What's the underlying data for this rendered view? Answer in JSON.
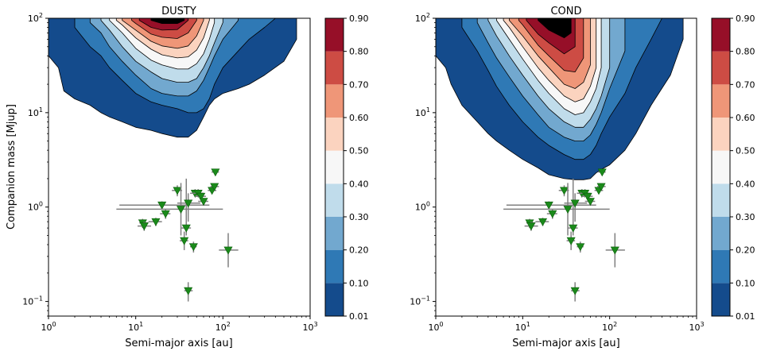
{
  "chart_data": [
    {
      "type": "contour",
      "title": "DUSTY",
      "xlabel": "Semi-major axis [au]",
      "ylabel": "Companion mass [Mjup]",
      "xscale": "log",
      "yscale": "log",
      "xlim": [
        1,
        1000
      ],
      "ylim": [
        0.07,
        100
      ],
      "xticks": [
        {
          "value": 1,
          "base": "10",
          "exp": "0"
        },
        {
          "value": 10,
          "base": "10",
          "exp": "1"
        },
        {
          "value": 100,
          "base": "10",
          "exp": "2"
        },
        {
          "value": 1000,
          "base": "10",
          "exp": "3"
        }
      ],
      "yticks": [
        {
          "value": 0.1,
          "base": "10",
          "exp": "−1"
        },
        {
          "value": 1,
          "base": "10",
          "exp": "0"
        },
        {
          "value": 10,
          "base": "10",
          "exp": "1"
        },
        {
          "value": 100,
          "base": "10",
          "exp": "2"
        }
      ],
      "contour_levels": [
        0.01,
        0.1,
        0.2,
        0.3,
        0.4,
        0.5,
        0.6,
        0.7,
        0.8,
        0.9
      ],
      "contour_floor_mass": [
        {
          "level": 0.01,
          "a": [
            1,
            1.3,
            1.5,
            2,
            3,
            4,
            5,
            7,
            10,
            15,
            20,
            30,
            40,
            50,
            60,
            70,
            80,
            100,
            150,
            200,
            300,
            500,
            700
          ],
          "m": [
            40,
            30,
            17,
            14,
            12,
            10,
            9,
            8,
            7,
            6.5,
            6,
            5.5,
            5.5,
            6.5,
            9,
            12,
            14,
            16,
            18,
            20,
            25,
            35,
            60
          ]
        },
        {
          "level": 0.1,
          "a": [
            2,
            3,
            4,
            5,
            7,
            10,
            15,
            20,
            30,
            40,
            50,
            60,
            70,
            80,
            100,
            150,
            200,
            300,
            400
          ],
          "m": [
            80,
            50,
            40,
            30,
            22,
            16,
            13,
            12,
            11,
            10,
            10,
            11,
            14,
            20,
            30,
            45,
            60,
            80,
            100
          ]
        },
        {
          "level": 0.2,
          "a": [
            3,
            4,
            5,
            7,
            10,
            15,
            20,
            30,
            40,
            50,
            60,
            70,
            80,
            100,
            150
          ],
          "m": [
            90,
            70,
            50,
            35,
            25,
            18,
            16,
            15,
            15,
            17,
            22,
            30,
            40,
            60,
            95
          ]
        },
        {
          "level": 0.3,
          "a": [
            4,
            5,
            7,
            10,
            15,
            20,
            30,
            40,
            50,
            60,
            70,
            80,
            100
          ],
          "m": [
            95,
            75,
            50,
            35,
            27,
            23,
            21,
            21,
            23,
            30,
            40,
            55,
            90
          ]
        },
        {
          "level": 0.4,
          "a": [
            5,
            7,
            10,
            15,
            20,
            30,
            40,
            50,
            60,
            70,
            80
          ],
          "m": [
            95,
            70,
            48,
            36,
            32,
            29,
            29,
            33,
            42,
            60,
            90
          ]
        },
        {
          "level": 0.5,
          "a": [
            6,
            7,
            10,
            15,
            20,
            30,
            40,
            50,
            60,
            70
          ],
          "m": [
            95,
            85,
            62,
            47,
            41,
            38,
            39,
            46,
            62,
            95
          ]
        },
        {
          "level": 0.6,
          "a": [
            7,
            10,
            15,
            20,
            30,
            40,
            50,
            60
          ],
          "m": [
            95,
            75,
            57,
            51,
            48,
            51,
            65,
            95
          ]
        },
        {
          "level": 0.7,
          "a": [
            9,
            10,
            15,
            20,
            30,
            40,
            50
          ],
          "m": [
            95,
            88,
            68,
            63,
            61,
            70,
            95
          ]
        },
        {
          "level": 0.8,
          "a": [
            11,
            15,
            20,
            30,
            40
          ],
          "m": [
            95,
            80,
            75,
            76,
            95
          ]
        },
        {
          "level": 0.9,
          "a": [
            15,
            20,
            30,
            36
          ],
          "m": [
            95,
            88,
            88,
            95
          ]
        }
      ],
      "points": [
        {
          "a": 12,
          "m": 0.68,
          "a_lo": 11,
          "a_hi": 14,
          "m_lo": 0.6,
          "m_hi": 0.75
        },
        {
          "a": 12.5,
          "m": 0.63,
          "a_lo": 10.5,
          "a_hi": 15,
          "m_lo": 0.56,
          "m_hi": 0.7
        },
        {
          "a": 17,
          "m": 0.7,
          "a_lo": 14,
          "a_hi": 20,
          "m_lo": 0.63,
          "m_hi": 0.77
        },
        {
          "a": 20,
          "m": 1.05,
          "a_lo": 6.5,
          "a_hi": 70,
          "m_lo": 0.95,
          "m_hi": 1.15
        },
        {
          "a": 22,
          "m": 0.85,
          "a_lo": 19,
          "a_hi": 25,
          "m_lo": 0.75,
          "m_hi": 0.95
        },
        {
          "a": 30,
          "m": 1.5,
          "a_lo": 26,
          "a_hi": 34,
          "m_lo": 1.3,
          "m_hi": 1.7
        },
        {
          "a": 33,
          "m": 0.95,
          "a_lo": 6,
          "a_hi": 100,
          "m_lo": 0.5,
          "m_hi": 1.8
        },
        {
          "a": 36,
          "m": 0.44,
          "a_lo": 32,
          "a_hi": 40,
          "m_lo": 0.35,
          "m_hi": 0.55
        },
        {
          "a": 38,
          "m": 0.6,
          "a_lo": 33,
          "a_hi": 43,
          "m_lo": 0.5,
          "m_hi": 2.0
        },
        {
          "a": 40,
          "m": 1.1,
          "a_lo": 30,
          "a_hi": 55,
          "m_lo": 0.7,
          "m_hi": 1.4
        },
        {
          "a": 46,
          "m": 0.38,
          "a_lo": 42,
          "a_hi": 50,
          "m_lo": 0.33,
          "m_hi": 0.43
        },
        {
          "a": 48,
          "m": 1.4,
          "a_lo": 42,
          "a_hi": 55,
          "m_lo": 1.3,
          "m_hi": 1.55
        },
        {
          "a": 52,
          "m": 1.4,
          "a_lo": 45,
          "a_hi": 60,
          "m_lo": 1.3,
          "m_hi": 1.55
        },
        {
          "a": 56,
          "m": 1.3,
          "a_lo": 48,
          "a_hi": 64,
          "m_lo": 1.2,
          "m_hi": 1.4
        },
        {
          "a": 60,
          "m": 1.15,
          "a_lo": 52,
          "a_hi": 68,
          "m_lo": 1.05,
          "m_hi": 1.25
        },
        {
          "a": 75,
          "m": 1.5,
          "a_lo": 67,
          "a_hi": 84,
          "m_lo": 1.4,
          "m_hi": 1.6
        },
        {
          "a": 80,
          "m": 1.65,
          "a_lo": 72,
          "a_hi": 90,
          "m_lo": 1.55,
          "m_hi": 1.75
        },
        {
          "a": 82,
          "m": 2.35,
          "a_lo": 74,
          "a_hi": 90,
          "m_lo": 2.2,
          "m_hi": 2.5
        },
        {
          "a": 40,
          "m": 0.13,
          "a_lo": 36,
          "a_hi": 45,
          "m_lo": 0.1,
          "m_hi": 0.16
        },
        {
          "a": 115,
          "m": 0.35,
          "a_lo": 90,
          "a_hi": 150,
          "m_lo": 0.23,
          "m_hi": 0.53
        }
      ]
    },
    {
      "type": "contour",
      "title": "COND",
      "xlabel": "Semi-major axis [au]",
      "ylabel": "",
      "xscale": "log",
      "yscale": "log",
      "xlim": [
        1,
        1000
      ],
      "ylim": [
        0.07,
        100
      ],
      "xticks": [
        {
          "value": 1,
          "base": "10",
          "exp": "0"
        },
        {
          "value": 10,
          "base": "10",
          "exp": "1"
        },
        {
          "value": 100,
          "base": "10",
          "exp": "2"
        },
        {
          "value": 1000,
          "base": "10",
          "exp": "3"
        }
      ],
      "yticks": [
        {
          "value": 0.1,
          "base": "10",
          "exp": "−1"
        },
        {
          "value": 1,
          "base": "10",
          "exp": "0"
        },
        {
          "value": 10,
          "base": "10",
          "exp": "1"
        },
        {
          "value": 100,
          "base": "10",
          "exp": "2"
        }
      ],
      "contour_levels": [
        0.01,
        0.1,
        0.2,
        0.3,
        0.4,
        0.5,
        0.6,
        0.7,
        0.8,
        0.9
      ],
      "contour_floor_mass": [
        {
          "level": 0.01,
          "a": [
            1,
            1.3,
            1.5,
            2,
            3,
            4,
            5,
            7,
            10,
            15,
            20,
            30,
            40,
            50,
            60,
            70,
            80,
            100,
            150,
            200,
            300,
            500,
            700
          ],
          "m": [
            40,
            30,
            20,
            12,
            8,
            6,
            5,
            4,
            3.2,
            2.6,
            2.2,
            2.0,
            1.95,
            1.95,
            2.0,
            2.3,
            2.5,
            2.8,
            4,
            6,
            12,
            25,
            60
          ]
        },
        {
          "level": 0.1,
          "a": [
            2,
            3,
            4,
            5,
            7,
            10,
            15,
            20,
            30,
            40,
            50,
            60,
            70,
            80,
            100,
            150,
            200,
            300,
            400
          ],
          "m": [
            80,
            45,
            28,
            19,
            12,
            8,
            5.5,
            4.5,
            3.6,
            3.2,
            3.2,
            3.6,
            4.5,
            6,
            9,
            16,
            30,
            60,
            100
          ]
        },
        {
          "level": 0.2,
          "a": [
            3,
            4,
            5,
            7,
            10,
            15,
            20,
            30,
            40,
            50,
            60,
            70,
            80,
            100,
            150
          ],
          "m": [
            90,
            55,
            38,
            24,
            15,
            9.5,
            7,
            5.5,
            5,
            5,
            5.8,
            7.5,
            10,
            18,
            45
          ]
        },
        {
          "level": 0.3,
          "a": [
            4,
            5,
            7,
            10,
            15,
            20,
            30,
            40,
            50,
            60,
            70,
            80,
            100
          ],
          "m": [
            95,
            65,
            40,
            25,
            15,
            11,
            8,
            7,
            7,
            8.5,
            11,
            15,
            30
          ]
        },
        {
          "level": 0.4,
          "a": [
            5,
            7,
            10,
            15,
            20,
            30,
            40,
            50,
            60,
            70,
            80
          ],
          "m": [
            95,
            60,
            37,
            22,
            16,
            11,
            9.5,
            10,
            13,
            18,
            30
          ]
        },
        {
          "level": 0.5,
          "a": [
            6,
            7,
            10,
            15,
            20,
            30,
            40,
            50,
            60,
            70
          ],
          "m": [
            95,
            80,
            50,
            30,
            22,
            15,
            13,
            14,
            19,
            30
          ]
        },
        {
          "level": 0.6,
          "a": [
            7,
            10,
            15,
            20,
            30,
            40,
            50,
            60
          ],
          "m": [
            95,
            65,
            40,
            30,
            20,
            18,
            21,
            32
          ]
        },
        {
          "level": 0.7,
          "a": [
            9,
            10,
            15,
            20,
            30,
            40,
            50
          ],
          "m": [
            95,
            85,
            52,
            40,
            28,
            27,
            38
          ]
        },
        {
          "level": 0.8,
          "a": [
            11,
            15,
            20,
            30,
            40
          ],
          "m": [
            95,
            68,
            55,
            42,
            50
          ]
        },
        {
          "level": 0.9,
          "a": [
            15,
            20,
            30,
            36
          ],
          "m": [
            95,
            75,
            62,
            70
          ]
        }
      ],
      "points": [
        {
          "a": 12,
          "m": 0.68,
          "a_lo": 11,
          "a_hi": 14,
          "m_lo": 0.6,
          "m_hi": 0.75
        },
        {
          "a": 12.5,
          "m": 0.63,
          "a_lo": 10.5,
          "a_hi": 15,
          "m_lo": 0.56,
          "m_hi": 0.7
        },
        {
          "a": 17,
          "m": 0.7,
          "a_lo": 14,
          "a_hi": 20,
          "m_lo": 0.63,
          "m_hi": 0.77
        },
        {
          "a": 20,
          "m": 1.05,
          "a_lo": 6.5,
          "a_hi": 70,
          "m_lo": 0.95,
          "m_hi": 1.15
        },
        {
          "a": 22,
          "m": 0.85,
          "a_lo": 19,
          "a_hi": 25,
          "m_lo": 0.75,
          "m_hi": 0.95
        },
        {
          "a": 30,
          "m": 1.5,
          "a_lo": 26,
          "a_hi": 34,
          "m_lo": 1.3,
          "m_hi": 1.7
        },
        {
          "a": 33,
          "m": 0.95,
          "a_lo": 6,
          "a_hi": 100,
          "m_lo": 0.5,
          "m_hi": 1.8
        },
        {
          "a": 36,
          "m": 0.44,
          "a_lo": 32,
          "a_hi": 40,
          "m_lo": 0.35,
          "m_hi": 0.55
        },
        {
          "a": 38,
          "m": 0.6,
          "a_lo": 33,
          "a_hi": 43,
          "m_lo": 0.5,
          "m_hi": 2.0
        },
        {
          "a": 40,
          "m": 1.1,
          "a_lo": 30,
          "a_hi": 55,
          "m_lo": 0.7,
          "m_hi": 1.4
        },
        {
          "a": 46,
          "m": 0.38,
          "a_lo": 42,
          "a_hi": 50,
          "m_lo": 0.33,
          "m_hi": 0.43
        },
        {
          "a": 48,
          "m": 1.4,
          "a_lo": 42,
          "a_hi": 55,
          "m_lo": 1.3,
          "m_hi": 1.55
        },
        {
          "a": 52,
          "m": 1.4,
          "a_lo": 45,
          "a_hi": 60,
          "m_lo": 1.3,
          "m_hi": 1.55
        },
        {
          "a": 56,
          "m": 1.3,
          "a_lo": 48,
          "a_hi": 64,
          "m_lo": 1.2,
          "m_hi": 1.4
        },
        {
          "a": 60,
          "m": 1.15,
          "a_lo": 52,
          "a_hi": 68,
          "m_lo": 1.05,
          "m_hi": 1.25
        },
        {
          "a": 75,
          "m": 1.5,
          "a_lo": 67,
          "a_hi": 84,
          "m_lo": 1.4,
          "m_hi": 1.6
        },
        {
          "a": 80,
          "m": 1.65,
          "a_lo": 72,
          "a_hi": 90,
          "m_lo": 1.55,
          "m_hi": 1.75
        },
        {
          "a": 82,
          "m": 2.35,
          "a_lo": 74,
          "a_hi": 90,
          "m_lo": 2.2,
          "m_hi": 2.5
        },
        {
          "a": 40,
          "m": 0.13,
          "a_lo": 36,
          "a_hi": 45,
          "m_lo": 0.1,
          "m_hi": 0.16
        },
        {
          "a": 115,
          "m": 0.35,
          "a_lo": 90,
          "a_hi": 150,
          "m_lo": 0.23,
          "m_hi": 0.53
        }
      ]
    }
  ],
  "colorbars": [
    {
      "labels": [
        "0.01",
        "0.10",
        "0.20",
        "0.30",
        "0.40",
        "0.50",
        "0.60",
        "0.70",
        "0.80",
        "0.90"
      ]
    },
    {
      "labels": [
        "0.01",
        "0.10",
        "0.20",
        "0.30",
        "0.40",
        "0.50",
        "0.60",
        "0.70",
        "0.80",
        "0.90"
      ]
    }
  ],
  "colors": {
    "bands": [
      "#144b8c",
      "#2f79b5",
      "#72a8cf",
      "#c0dceb",
      "#f7f7f7",
      "#fbd3bf",
      "#ef9678",
      "#cd4c44",
      "#960f28"
    ],
    "contour_line": "#000000",
    "marker": "#1a8a1a",
    "marker_edge": "#0d5e0d",
    "errorbar": "#808080"
  }
}
